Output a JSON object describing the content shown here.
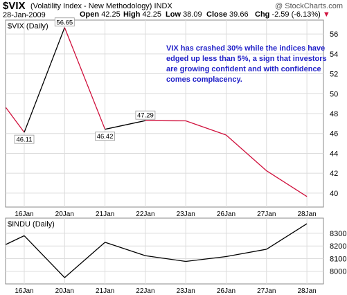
{
  "header": {
    "ticker": "$VIX",
    "name": "(Volatility Index - New Methodology)",
    "exchange": "INDX",
    "credit": "@ StockCharts.com",
    "date": "28-Jan-2009",
    "quote": {
      "open_label": "Open",
      "open": "42.25",
      "high_label": "High",
      "high": "42.25",
      "low_label": "Low",
      "low": "38.09",
      "close_label": "Close",
      "close": "39.66",
      "chg_label": "Chg",
      "chg": "-2.59 (-6.13%)",
      "chg_arrow": "▼"
    }
  },
  "annotation": "VIX has crashed 30% while the indices have edged up less than 5%, a sign that investors are growing confident and with confidence comes complacency.",
  "colors": {
    "up": "#000000",
    "down": "#d0103c",
    "annotation": "#1f1fc8",
    "grid": "#dcdcdc"
  },
  "chart_data": [
    {
      "type": "line",
      "panel_label": "$VIX (Daily)",
      "categories": [
        "16Jan",
        "20Jan",
        "21Jan",
        "22Jan",
        "23Jan",
        "26Jan",
        "27Jan",
        "28Jan"
      ],
      "x": [
        "15Jan",
        "16Jan",
        "20Jan",
        "21Jan",
        "22Jan",
        "23Jan",
        "26Jan",
        "27Jan",
        "28Jan"
      ],
      "values": [
        48.6,
        46.11,
        56.65,
        46.42,
        47.29,
        47.27,
        45.84,
        42.25,
        39.66
      ],
      "ylim": [
        38.6,
        57.4
      ],
      "yticks": [
        40,
        42,
        44,
        46,
        48,
        50,
        52,
        54,
        56
      ],
      "data_labels": [
        {
          "index": 1,
          "text": "46.11"
        },
        {
          "index": 2,
          "text": "56.65"
        },
        {
          "index": 3,
          "text": "46.42"
        },
        {
          "index": 4,
          "text": "47.29"
        }
      ],
      "grid": true
    },
    {
      "type": "line",
      "panel_label": "$INDU (Daily)",
      "categories": [
        "16Jan",
        "20Jan",
        "21Jan",
        "22Jan",
        "23Jan",
        "26Jan",
        "27Jan",
        "28Jan"
      ],
      "x": [
        "15Jan",
        "16Jan",
        "20Jan",
        "21Jan",
        "22Jan",
        "23Jan",
        "26Jan",
        "27Jan",
        "28Jan"
      ],
      "values": [
        8212,
        8281,
        7950,
        8229,
        8123,
        8078,
        8116,
        8174,
        8376
      ],
      "ylim": [
        7900,
        8420
      ],
      "yticks": [
        8000,
        8100,
        8200,
        8300
      ],
      "grid": true,
      "color": "#000000"
    }
  ]
}
